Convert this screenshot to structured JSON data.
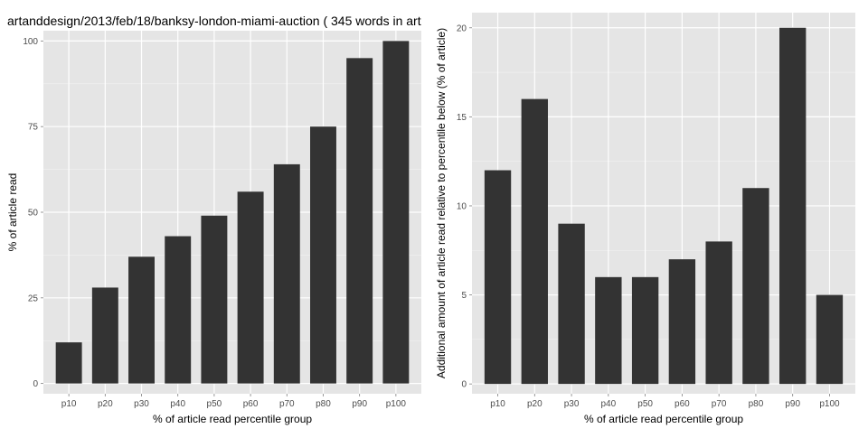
{
  "chart_data": [
    {
      "type": "bar",
      "title": "artanddesign/2013/feb/18/banksy-london-miami-auction ( 345 words in art",
      "xlabel": "% of article read percentile group",
      "ylabel": "% of article read",
      "categories": [
        "p10",
        "p20",
        "p30",
        "p40",
        "p50",
        "p60",
        "p70",
        "p80",
        "p90",
        "p100"
      ],
      "values": [
        12,
        28,
        37,
        43,
        49,
        56,
        64,
        75,
        95,
        100
      ],
      "yticks": [
        0,
        25,
        50,
        75,
        100
      ],
      "ylim": [
        -3,
        103
      ],
      "grid": true,
      "bar_color": "#333333",
      "panel_color": "#e5e5e5"
    },
    {
      "type": "bar",
      "title": "",
      "xlabel": "% of article read percentile group",
      "ylabel": "Additional amount of article read relative to percentile below (% of article)",
      "categories": [
        "p10",
        "p20",
        "p30",
        "p40",
        "p50",
        "p60",
        "p70",
        "p80",
        "p90",
        "p100"
      ],
      "values": [
        12,
        16,
        9,
        6,
        6,
        7,
        8,
        11,
        20,
        5
      ],
      "yticks": [
        0,
        5,
        10,
        15,
        20
      ],
      "ylim": [
        -0.55,
        20.85
      ],
      "grid": true,
      "bar_color": "#333333",
      "panel_color": "#e5e5e5"
    }
  ]
}
